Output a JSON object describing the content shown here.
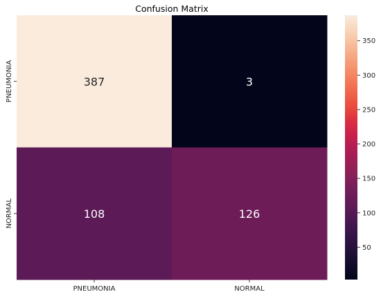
{
  "chart_data": {
    "type": "heatmap",
    "title": "Confusion Matrix",
    "row_labels": [
      "PNEUMONIA",
      "NORMAL"
    ],
    "col_labels": [
      "PNEUMONIA",
      "NORMAL"
    ],
    "values": [
      [
        387,
        3
      ],
      [
        108,
        126
      ]
    ],
    "colorbar": {
      "ticks": [
        50,
        100,
        150,
        200,
        250,
        300,
        350
      ],
      "range": [
        3,
        387
      ]
    },
    "colormap": "rocket",
    "colors": {
      "low": "#03051a",
      "high": "#faebdd",
      "annotation_light": "#ffffff",
      "annotation_dark": "#262626"
    }
  }
}
